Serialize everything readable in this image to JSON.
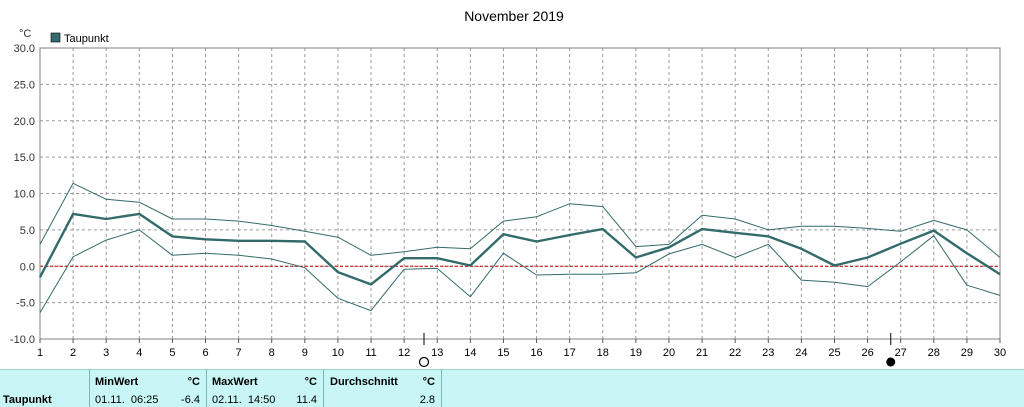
{
  "chart_data": {
    "type": "line",
    "title": "November 2019",
    "unit_label": "°C",
    "legend": {
      "label": "Taupunkt",
      "color": "#336b6b",
      "placement": "top-left"
    },
    "x": [
      1,
      2,
      3,
      4,
      5,
      6,
      7,
      8,
      9,
      10,
      11,
      12,
      13,
      14,
      15,
      16,
      17,
      18,
      19,
      20,
      21,
      22,
      23,
      24,
      25,
      26,
      27,
      28,
      29,
      30
    ],
    "xlim": [
      1,
      30
    ],
    "ylim": [
      -10,
      30
    ],
    "yticks": [
      "30.0",
      "25.0",
      "20.0",
      "15.0",
      "10.0",
      "5.0",
      "0.0",
      "-5.0",
      "-10.0"
    ],
    "ytick_values": [
      30,
      25,
      20,
      15,
      10,
      5,
      0,
      -5,
      -10
    ],
    "grid": true,
    "zero_line_color": "#cc0000",
    "series": [
      {
        "role": "max",
        "color": "#336b6b",
        "values": [
          3.0,
          11.4,
          9.2,
          8.8,
          6.5,
          6.5,
          6.2,
          5.6,
          4.8,
          4.0,
          1.5,
          2.0,
          2.6,
          2.4,
          6.2,
          6.8,
          8.6,
          8.2,
          2.7,
          3.0,
          7.0,
          6.5,
          5.0,
          5.5,
          5.5,
          5.2,
          4.8,
          6.3,
          5.0,
          1.2
        ]
      },
      {
        "role": "mean",
        "color": "#336b6b",
        "values": [
          -1.5,
          7.2,
          6.5,
          7.2,
          4.1,
          3.7,
          3.5,
          3.5,
          3.4,
          -0.8,
          -2.5,
          1.1,
          1.1,
          0.1,
          4.4,
          3.4,
          4.3,
          5.1,
          1.2,
          2.6,
          5.1,
          4.6,
          4.1,
          2.4,
          0.1,
          1.2,
          3.1,
          4.9,
          1.8,
          -1.1
        ]
      },
      {
        "role": "min",
        "color": "#336b6b",
        "values": [
          -6.4,
          1.3,
          3.6,
          5.0,
          1.5,
          1.8,
          1.5,
          1.0,
          -0.2,
          -4.4,
          -6.1,
          -0.4,
          -0.3,
          -4.2,
          1.8,
          -1.2,
          -1.1,
          -1.1,
          -0.9,
          1.7,
          3.0,
          1.2,
          3.0,
          -1.9,
          -2.2,
          -2.8,
          0.6,
          4.2,
          -2.6,
          -4.0
        ]
      }
    ],
    "moon_markers": [
      {
        "x": 12.6,
        "phase": "first-quarter"
      },
      {
        "x": 26.7,
        "phase": "new-moon"
      }
    ]
  },
  "stats": {
    "row_label": "Taupunkt",
    "min": {
      "header": "MinWert",
      "unit": "°C",
      "datetime": "01.11.  06:25",
      "value": "-6.4"
    },
    "max": {
      "header": "MaxWert",
      "unit": "°C",
      "datetime": "02.11.  14:50",
      "value": "11.4"
    },
    "avg": {
      "header": "Durchschnitt",
      "unit": "°C",
      "value": "2.8"
    }
  }
}
